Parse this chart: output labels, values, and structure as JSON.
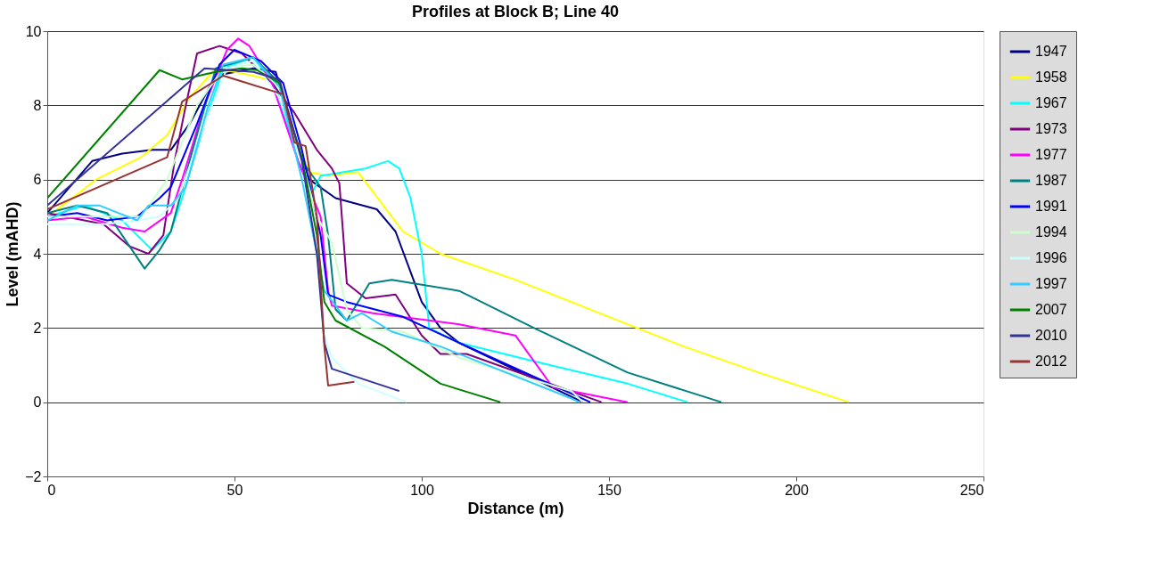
{
  "chart_data": {
    "type": "line",
    "title": "Profiles at Block B; Line 40",
    "xlabel": "Distance (m)",
    "ylabel": "Level (mAHD)",
    "xlim": [
      0,
      250
    ],
    "xticks": [
      0,
      50,
      100,
      150,
      200,
      250
    ],
    "ylim": [
      -2,
      10
    ],
    "yticks": [
      -2,
      0,
      2,
      4,
      6,
      8,
      10
    ],
    "grid": "y",
    "legend": "right",
    "marker": "none",
    "line_style": "solid",
    "series": [
      {
        "name": "1947",
        "color": "#000080",
        "x": [
          0,
          12,
          20,
          28,
          33,
          38,
          45,
          55,
          61,
          65,
          70,
          77,
          88,
          93,
          100,
          105,
          110,
          143
        ],
        "values": [
          5.1,
          6.5,
          6.7,
          6.8,
          6.8,
          7.5,
          8.8,
          9.0,
          8.9,
          7.5,
          6.0,
          5.5,
          5.2,
          4.6,
          2.7,
          2.0,
          1.6,
          0
        ]
      },
      {
        "name": "1958",
        "color": "#ffff00",
        "x": [
          0,
          8,
          13,
          25,
          32,
          38,
          45,
          55,
          62,
          66,
          70,
          75,
          83,
          95,
          105,
          125,
          150,
          170,
          190,
          214
        ],
        "values": [
          5.0,
          5.6,
          6.0,
          6.6,
          7.2,
          8.2,
          9.0,
          8.8,
          8.6,
          7.2,
          6.2,
          6.1,
          6.2,
          4.6,
          4.0,
          3.3,
          2.3,
          1.5,
          0.8,
          0
        ]
      },
      {
        "name": "1967",
        "color": "#00ffff",
        "x": [
          0,
          10,
          20,
          28,
          33,
          36,
          42,
          47,
          55,
          61,
          67,
          71,
          73,
          85,
          91,
          94,
          97,
          100,
          102,
          110,
          130,
          155,
          171
        ],
        "values": [
          5.0,
          5.3,
          4.9,
          4.1,
          4.6,
          5.5,
          7.5,
          9.0,
          9.3,
          8.5,
          6.5,
          5.7,
          6.1,
          6.3,
          6.5,
          6.3,
          5.5,
          4.0,
          2.0,
          1.6,
          1.1,
          0.5,
          0
        ]
      },
      {
        "name": "1973",
        "color": "#800080",
        "x": [
          0,
          15,
          22,
          27,
          31,
          34,
          37,
          40,
          46,
          52,
          60,
          66,
          72,
          76,
          78,
          80,
          85,
          93,
          100,
          105,
          112,
          148
        ],
        "values": [
          5.1,
          4.8,
          4.2,
          4.0,
          4.5,
          6.5,
          8.0,
          9.4,
          9.6,
          9.4,
          8.6,
          7.8,
          6.8,
          6.3,
          5.9,
          3.2,
          2.8,
          2.9,
          1.8,
          1.3,
          1.3,
          0
        ]
      },
      {
        "name": "1977",
        "color": "#ff00ff",
        "x": [
          0,
          10,
          20,
          26,
          33,
          36,
          42,
          48,
          51,
          54,
          60,
          67,
          73,
          75,
          76,
          87,
          110,
          125,
          135,
          155
        ],
        "values": [
          4.9,
          5.0,
          4.7,
          4.6,
          5.1,
          6.0,
          8.0,
          9.5,
          9.8,
          9.6,
          8.6,
          6.5,
          5.0,
          3.0,
          2.6,
          2.4,
          2.1,
          1.8,
          0.4,
          0
        ]
      },
      {
        "name": "1987",
        "color": "#008080",
        "x": [
          0,
          8,
          16,
          22,
          26,
          30,
          33,
          38,
          45,
          55,
          62,
          68,
          73,
          75,
          77,
          80,
          86,
          92,
          110,
          130,
          155,
          180
        ],
        "values": [
          5.1,
          5.3,
          5.1,
          4.2,
          3.6,
          4.1,
          4.6,
          6.5,
          9.0,
          9.3,
          8.6,
          6.5,
          5.8,
          4.5,
          2.5,
          2.2,
          3.2,
          3.3,
          3.0,
          2.0,
          0.8,
          0
        ]
      },
      {
        "name": "1991",
        "color": "#0000ff",
        "x": [
          0,
          8,
          16,
          24,
          30,
          33,
          40,
          46,
          50,
          57,
          63,
          68,
          73,
          75,
          80,
          95,
          110,
          145
        ],
        "values": [
          5.0,
          5.1,
          4.9,
          5.0,
          5.5,
          5.8,
          7.5,
          9.1,
          9.5,
          9.2,
          8.6,
          6.8,
          4.5,
          2.9,
          2.7,
          2.3,
          1.6,
          0
        ]
      },
      {
        "name": "1994",
        "color": "#ccffcc",
        "x": [
          0,
          15,
          25,
          32,
          40,
          47,
          55,
          62,
          68,
          72,
          76,
          80,
          84,
          95,
          110,
          140,
          143
        ],
        "values": [
          5.0,
          5.0,
          5.0,
          6.0,
          8.0,
          9.0,
          9.1,
          8.5,
          6.5,
          5.0,
          4.3,
          2.5,
          2.0,
          1.9,
          1.2,
          0.3,
          0
        ]
      },
      {
        "name": "1996",
        "color": "#ccffff",
        "x": [
          0,
          15,
          24,
          30,
          35,
          42,
          48,
          55,
          62,
          68,
          72,
          74,
          76,
          83,
          96
        ],
        "values": [
          4.8,
          4.8,
          4.9,
          5.0,
          5.5,
          7.5,
          9.0,
          9.2,
          8.2,
          6.5,
          4.0,
          1.8,
          1.2,
          0.5,
          0
        ]
      },
      {
        "name": "1997",
        "color": "#33ccff",
        "x": [
          0,
          8,
          14,
          24,
          27,
          33,
          37,
          43,
          47,
          55,
          62,
          68,
          72,
          74,
          80,
          84,
          92,
          105,
          140,
          142
        ],
        "values": [
          4.9,
          5.3,
          5.3,
          4.9,
          5.3,
          5.3,
          5.8,
          8.0,
          9.1,
          9.3,
          8.5,
          6.0,
          4.0,
          3.0,
          2.2,
          2.4,
          1.9,
          1.5,
          0.1,
          0
        ]
      },
      {
        "name": "2007",
        "color": "#008000",
        "x": [
          0,
          30,
          36,
          45,
          52,
          56,
          62,
          68,
          72,
          74,
          77,
          90,
          105,
          121
        ],
        "values": [
          5.5,
          8.95,
          8.7,
          8.9,
          9.0,
          8.95,
          8.6,
          6.6,
          4.5,
          2.7,
          2.2,
          1.5,
          0.5,
          0
        ]
      },
      {
        "name": "2010",
        "color": "#333399",
        "x": [
          0,
          42,
          55,
          62,
          68,
          72,
          74,
          76,
          85,
          94
        ],
        "values": [
          5.3,
          9.0,
          8.9,
          8.7,
          6.5,
          4.0,
          1.6,
          0.9,
          0.6,
          0.3
        ]
      },
      {
        "name": "2012",
        "color": "#993333",
        "x": [
          0,
          32,
          36,
          47,
          63,
          66,
          69,
          72,
          74,
          75,
          82
        ],
        "values": [
          5.2,
          6.6,
          8.1,
          8.8,
          8.3,
          7.0,
          6.9,
          5.0,
          1.5,
          0.45,
          0.55
        ]
      }
    ]
  }
}
